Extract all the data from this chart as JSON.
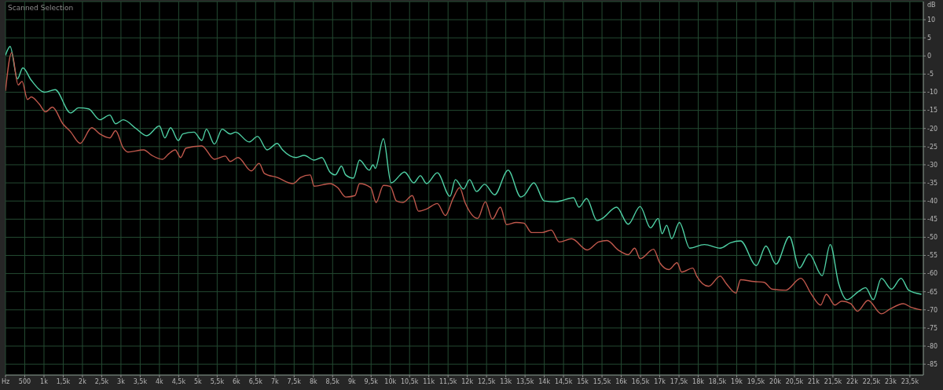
{
  "chart_data": {
    "type": "line",
    "title": "Scanned Selection",
    "ylabel": "dB",
    "xlim": [
      0,
      23850
    ],
    "ylim": [
      -88,
      15
    ],
    "xticks": [
      {
        "value": 0,
        "label": "Hz"
      },
      500,
      {
        "value": 1000,
        "label": "1k"
      },
      {
        "value": 1500,
        "label": "1,5k"
      },
      {
        "value": 2000,
        "label": "2k"
      },
      {
        "value": 2500,
        "label": "2,5k"
      },
      {
        "value": 3000,
        "label": "3k"
      },
      {
        "value": 3500,
        "label": "3,5k"
      },
      {
        "value": 4000,
        "label": "4k"
      },
      {
        "value": 4500,
        "label": "4,5k"
      },
      {
        "value": 5000,
        "label": "5k"
      },
      {
        "value": 5500,
        "label": "5,5k"
      },
      {
        "value": 6000,
        "label": "6k"
      },
      {
        "value": 6500,
        "label": "6,5k"
      },
      {
        "value": 7000,
        "label": "7k"
      },
      {
        "value": 7500,
        "label": "7,5k"
      },
      {
        "value": 8000,
        "label": "8k"
      },
      {
        "value": 8500,
        "label": "8,5k"
      },
      {
        "value": 9000,
        "label": "9k"
      },
      {
        "value": 9500,
        "label": "9,5k"
      },
      {
        "value": 10000,
        "label": "10k"
      },
      {
        "value": 10500,
        "label": "10,5k"
      },
      {
        "value": 11000,
        "label": "11k"
      },
      {
        "value": 11500,
        "label": "11,5k"
      },
      {
        "value": 12000,
        "label": "12k"
      },
      {
        "value": 12500,
        "label": "12,5k"
      },
      {
        "value": 13000,
        "label": "13k"
      },
      {
        "value": 13500,
        "label": "13,5k"
      },
      {
        "value": 14000,
        "label": "14k"
      },
      {
        "value": 14500,
        "label": "14,5k"
      },
      {
        "value": 15000,
        "label": "15k"
      },
      {
        "value": 15500,
        "label": "15,5k"
      },
      {
        "value": 16000,
        "label": "16k"
      },
      {
        "value": 16500,
        "label": "16,5k"
      },
      {
        "value": 17000,
        "label": "17k"
      },
      {
        "value": 17500,
        "label": "17,5k"
      },
      {
        "value": 18000,
        "label": "18k"
      },
      {
        "value": 18500,
        "label": "18,5k"
      },
      {
        "value": 19000,
        "label": "19k"
      },
      {
        "value": 19500,
        "label": "19,5k"
      },
      {
        "value": 20000,
        "label": "20k"
      },
      {
        "value": 20500,
        "label": "20,5k"
      },
      {
        "value": 21000,
        "label": "21k"
      },
      {
        "value": 21500,
        "label": "21,5k"
      },
      {
        "value": 22000,
        "label": "22k"
      },
      {
        "value": 22500,
        "label": "22,5k"
      },
      {
        "value": 23000,
        "label": "23k"
      },
      {
        "value": 23500,
        "label": "23,5k"
      }
    ],
    "yticks": [
      10,
      5,
      0,
      -5,
      -10,
      -15,
      -20,
      -25,
      -30,
      -35,
      -40,
      -45,
      -50,
      -55,
      -60,
      -65,
      -70,
      -75,
      -80,
      -85
    ],
    "grid": true,
    "marker": "none",
    "line_style": "solid",
    "series": [
      {
        "color": "#4fd1a5",
        "x": [
          0,
          120,
          310,
          450,
          670,
          1020,
          1290,
          1690,
          1900,
          2160,
          2450,
          2710,
          2860,
          3060,
          3390,
          3670,
          4000,
          4140,
          4290,
          4490,
          4610,
          4900,
          5100,
          5220,
          5430,
          5630,
          5840,
          5980,
          6330,
          6550,
          6800,
          7060,
          7200,
          7550,
          7760,
          8020,
          8220,
          8430,
          8570,
          8730,
          8840,
          9040,
          9200,
          9450,
          9550,
          9610,
          9820,
          10020,
          10370,
          10610,
          10780,
          10940,
          11220,
          11550,
          11690,
          11900,
          12060,
          12240,
          12450,
          12710,
          13060,
          13390,
          13470,
          13730,
          14000,
          14290,
          14760,
          14900,
          15100,
          15370,
          15510,
          15880,
          16180,
          16490,
          16760,
          16960,
          17060,
          17180,
          17310,
          17510,
          17780,
          18160,
          18570,
          18840,
          19100,
          19510,
          19760,
          20020,
          20370,
          20630,
          20880,
          21220,
          21430,
          21650,
          21860,
          22160,
          22350,
          22550,
          22760,
          23020,
          23270,
          23470,
          23800
        ],
        "values": [
          0.2,
          2.6,
          -6.3,
          -3.3,
          -6.7,
          -10,
          -9.3,
          -15.7,
          -14.3,
          -14.6,
          -17.6,
          -16.3,
          -18.7,
          -17.6,
          -20,
          -22,
          -19.3,
          -22.6,
          -19.8,
          -23.3,
          -21.5,
          -21,
          -23.3,
          -20.2,
          -24.3,
          -20.2,
          -21.5,
          -21,
          -23.7,
          -22.2,
          -25.9,
          -24.1,
          -25.9,
          -28,
          -27.4,
          -28.7,
          -28,
          -32,
          -32.8,
          -30.4,
          -32.8,
          -33.7,
          -28.7,
          -31.5,
          -30,
          -31,
          -22.8,
          -35,
          -32,
          -35,
          -33,
          -35.2,
          -32.2,
          -38.7,
          -34.1,
          -36.7,
          -34.1,
          -37.4,
          -35.4,
          -38.3,
          -31.5,
          -38.9,
          -38.5,
          -35,
          -40,
          -40.2,
          -39.1,
          -41.7,
          -39.3,
          -45.4,
          -44.8,
          -41.7,
          -46.4,
          -41.5,
          -47.4,
          -44.8,
          -49,
          -46.7,
          -50.4,
          -45.9,
          -53,
          -52,
          -53,
          -51.5,
          -51,
          -57.8,
          -52.4,
          -57.4,
          -49.8,
          -58.5,
          -54.6,
          -60.6,
          -52,
          -62.8,
          -67.2,
          -65,
          -63.9,
          -67.2,
          -61.3,
          -64.3,
          -61.3,
          -64.6,
          -65.7
        ]
      },
      {
        "color": "#c0584c",
        "x": [
          0,
          160,
          330,
          430,
          570,
          670,
          880,
          1040,
          1220,
          1490,
          1690,
          1940,
          2240,
          2450,
          2710,
          2860,
          3060,
          3180,
          3590,
          3800,
          4080,
          4240,
          4410,
          4550,
          4690,
          5100,
          5430,
          5710,
          5840,
          6040,
          6390,
          6590,
          6730,
          7060,
          7470,
          7670,
          7920,
          8020,
          8430,
          8630,
          8840,
          9080,
          9200,
          9490,
          9630,
          9820,
          10000,
          10160,
          10330,
          10570,
          10730,
          10940,
          11220,
          11430,
          11630,
          11800,
          11940,
          12270,
          12470,
          12650,
          12860,
          13020,
          13270,
          13470,
          13670,
          13940,
          14180,
          14390,
          14710,
          15120,
          15410,
          15630,
          15920,
          16180,
          16350,
          16490,
          16840,
          17000,
          17240,
          17450,
          17570,
          17860,
          17960,
          18270,
          18570,
          18730,
          18980,
          19100,
          19450,
          19710,
          19920,
          20270,
          20670,
          20940,
          21180,
          21330,
          21550,
          21730,
          21960,
          22140,
          22410,
          22760,
          22980,
          23330,
          23530,
          23800
        ],
        "values": [
          -9.6,
          0.9,
          -8,
          -7,
          -12,
          -11.3,
          -13.3,
          -15.4,
          -14.1,
          -18.7,
          -20.9,
          -24.1,
          -19.8,
          -21.5,
          -22.6,
          -20.6,
          -25.4,
          -26.5,
          -25.9,
          -27.4,
          -28.5,
          -27,
          -25.9,
          -28,
          -25.4,
          -24.8,
          -28.5,
          -27.6,
          -29.1,
          -28,
          -31.7,
          -29.6,
          -32.4,
          -33.5,
          -35.2,
          -33.5,
          -32.8,
          -35.9,
          -35.2,
          -36.3,
          -38.9,
          -38.5,
          -35.2,
          -36.3,
          -40.4,
          -35.7,
          -36,
          -40,
          -40.4,
          -38.5,
          -42.8,
          -42.2,
          -40.7,
          -44,
          -39.3,
          -36.3,
          -40.4,
          -44.8,
          -40.2,
          -45,
          -41.7,
          -46.5,
          -45.9,
          -46.1,
          -48.7,
          -48.7,
          -48,
          -51.3,
          -50.4,
          -53.5,
          -51.3,
          -50.9,
          -53.5,
          -54.8,
          -53,
          -55.9,
          -53.3,
          -57,
          -58.9,
          -57,
          -59.6,
          -58.5,
          -60.7,
          -63.5,
          -60.7,
          -62.8,
          -65.4,
          -61.7,
          -62.2,
          -62.4,
          -64.3,
          -64.6,
          -61.3,
          -65.7,
          -68.7,
          -65.7,
          -68.7,
          -67.6,
          -68.3,
          -70.4,
          -67.4,
          -71.1,
          -69.8,
          -68.3,
          -69.3,
          -70
        ]
      }
    ]
  }
}
